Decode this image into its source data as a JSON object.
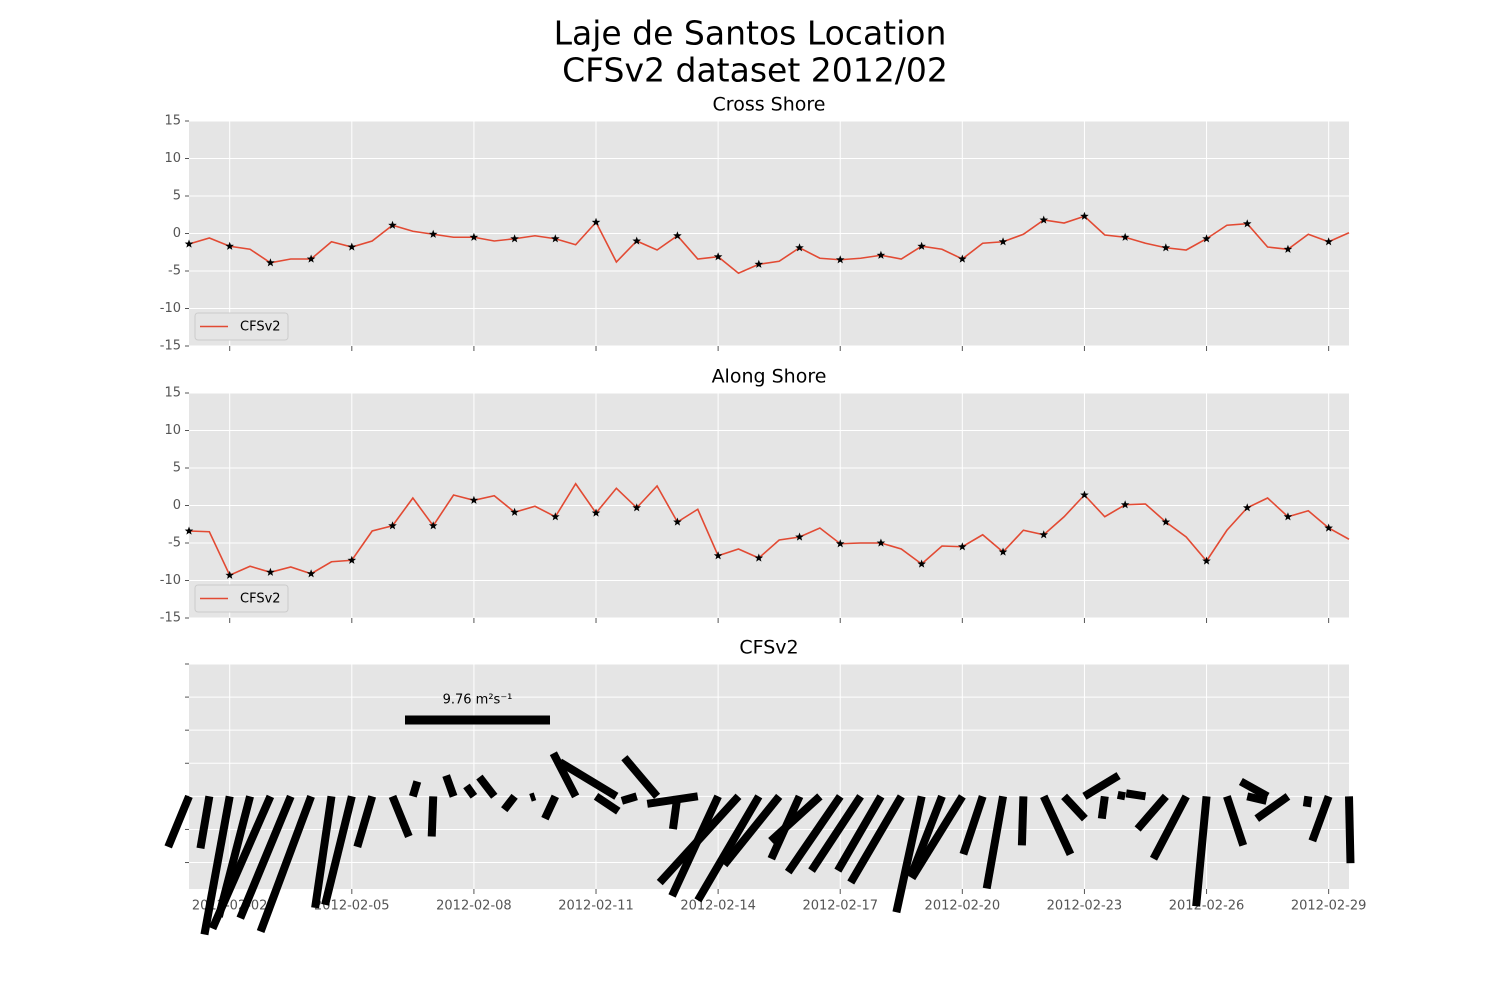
{
  "title": "Laje de Santos Location",
  "subtitle": "CFSv2 dataset 2012/02",
  "chart_data": [
    {
      "type": "line",
      "title": "Cross Shore",
      "x": [
        1,
        1.5,
        2,
        2.5,
        3,
        3.5,
        4,
        4.5,
        5,
        5.5,
        6,
        6.5,
        7,
        7.5,
        8,
        8.5,
        9,
        9.5,
        10,
        10.5,
        11,
        11.5,
        12,
        12.5,
        13,
        13.5,
        14,
        14.5,
        15,
        15.5,
        16,
        16.5,
        17,
        17.5,
        18,
        18.5,
        19,
        19.5,
        20,
        20.5,
        21,
        21.5,
        22,
        22.5,
        23,
        23.5,
        24,
        24.5,
        25,
        25.5,
        26,
        26.5,
        27,
        27.5,
        28,
        28.5,
        29,
        29.5
      ],
      "series": [
        {
          "name": "CFSv2",
          "color": "#e24a33",
          "values": [
            -1.4,
            -0.6,
            -1.7,
            -2.1,
            -3.9,
            -3.4,
            -3.4,
            -1.1,
            -1.8,
            -1.0,
            1.1,
            0.3,
            -0.1,
            -0.5,
            -0.5,
            -1.0,
            -0.7,
            -0.3,
            -0.7,
            -1.5,
            1.5,
            -3.8,
            -1.0,
            -2.2,
            -0.3,
            -3.4,
            -3.1,
            -5.3,
            -4.1,
            -3.7,
            -1.9,
            -3.3,
            -3.5,
            -3.3,
            -2.9,
            -3.4,
            -1.7,
            -2.1,
            -3.4,
            -1.3,
            -1.1,
            -0.1,
            1.8,
            1.4,
            2.3,
            -0.2,
            -0.5,
            -1.3,
            -1.9,
            -2.2,
            -0.7,
            1.1,
            1.3,
            -1.8,
            -2.1,
            -0.1,
            -1.1,
            0.1
          ]
        }
      ],
      "xlim": [
        1,
        29.5
      ],
      "xticks": [
        2,
        5,
        8,
        11,
        14,
        17,
        20,
        23,
        26,
        29
      ],
      "ylim": [
        -15,
        15
      ],
      "yticks": [
        -15,
        -10,
        -5,
        0,
        5,
        10,
        15
      ],
      "grid": true,
      "legend": "lower left",
      "marker_color": "#000000"
    },
    {
      "type": "line",
      "title": "Along Shore",
      "x": [
        1,
        1.5,
        2,
        2.5,
        3,
        3.5,
        4,
        4.5,
        5,
        5.5,
        6,
        6.5,
        7,
        7.5,
        8,
        8.5,
        9,
        9.5,
        10,
        10.5,
        11,
        11.5,
        12,
        12.5,
        13,
        13.5,
        14,
        14.5,
        15,
        15.5,
        16,
        16.5,
        17,
        17.5,
        18,
        18.5,
        19,
        19.5,
        20,
        20.5,
        21,
        21.5,
        22,
        22.5,
        23,
        23.5,
        24,
        24.5,
        25,
        25.5,
        26,
        26.5,
        27,
        27.5,
        28,
        28.5,
        29,
        29.5
      ],
      "series": [
        {
          "name": "CFSv2",
          "color": "#e24a33",
          "values": [
            -3.4,
            -3.5,
            -9.3,
            -8.1,
            -8.9,
            -8.2,
            -9.1,
            -7.5,
            -7.3,
            -3.4,
            -2.7,
            1.0,
            -2.7,
            1.4,
            0.7,
            1.3,
            -0.9,
            -0.1,
            -1.5,
            2.9,
            -1.0,
            2.3,
            -0.3,
            2.6,
            -2.2,
            -0.5,
            -6.7,
            -5.8,
            -7.0,
            -4.6,
            -4.2,
            -3.0,
            -5.1,
            -5.0,
            -5.0,
            -5.8,
            -7.8,
            -5.4,
            -5.5,
            -3.9,
            -6.2,
            -3.3,
            -3.9,
            -1.5,
            1.4,
            -1.5,
            0.1,
            0.2,
            -2.2,
            -4.2,
            -7.4,
            -3.3,
            -0.3,
            1.0,
            -1.5,
            -0.7,
            -3.0,
            -4.5
          ]
        }
      ],
      "xlim": [
        1,
        29.5
      ],
      "xticks": [
        2,
        5,
        8,
        11,
        14,
        17,
        20,
        23,
        26,
        29
      ],
      "ylim": [
        -15,
        15
      ],
      "yticks": [
        -15,
        -10,
        -5,
        0,
        5,
        10,
        15
      ],
      "grid": true,
      "legend": "lower left",
      "marker_color": "#000000"
    },
    {
      "type": "quiver",
      "title": "CFSv2",
      "color": "#000000",
      "key": {
        "value": 9.76,
        "label": "9.76 m²s⁻¹"
      },
      "xlim": [
        1,
        29.5
      ],
      "xticks": [
        {
          "value": 2,
          "label": "2012-02-02"
        },
        {
          "value": 5,
          "label": "2012-02-05"
        },
        {
          "value": 8,
          "label": "2012-02-08"
        },
        {
          "value": 11,
          "label": "2012-02-11"
        },
        {
          "value": 14,
          "label": "2012-02-14"
        },
        {
          "value": 17,
          "label": "2012-02-17"
        },
        {
          "value": 20,
          "label": "2012-02-20"
        },
        {
          "value": 23,
          "label": "2012-02-23"
        },
        {
          "value": 26,
          "label": "2012-02-26"
        },
        {
          "value": 29,
          "label": "2012-02-29"
        }
      ],
      "ylim": [
        -2.8,
        4
      ],
      "yticks": [
        -2,
        -1,
        0,
        1,
        2,
        3,
        4
      ],
      "grid": true
    }
  ]
}
